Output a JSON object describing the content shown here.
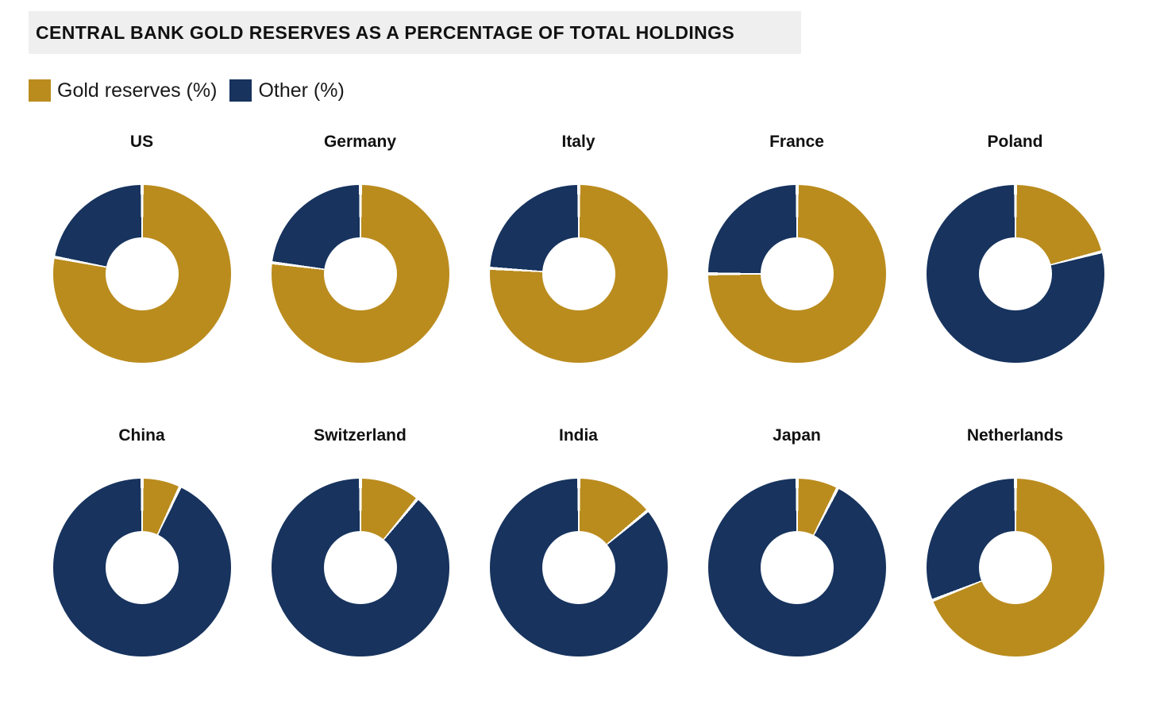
{
  "title": "CENTRAL BANK GOLD RESERVES AS A PERCENTAGE OF TOTAL HOLDINGS",
  "legend": [
    {
      "label": "Gold reserves (%)",
      "color": "#BA8C1E"
    },
    {
      "label": "Other (%)",
      "color": "#17335E"
    }
  ],
  "colors": {
    "gold": "#BA8C1E",
    "navy": "#17335E",
    "title_bg": "#EFEFEF",
    "text": "#1A1A1A",
    "separator": "#FFFFFF"
  },
  "chart_data": {
    "type": "pie",
    "variant": "donut",
    "title": "CENTRAL BANK GOLD RESERVES AS A PERCENTAGE OF TOTAL HOLDINGS",
    "legend_entries": [
      "Gold reserves (%)",
      "Other (%)"
    ],
    "layout": {
      "rows": 2,
      "cols": 5,
      "legend_position": "top-left",
      "start_angle_deg": 0,
      "direction": "clockwise",
      "inner_radius_pct": 41
    },
    "charts": [
      {
        "country": "US",
        "gold_pct": 78,
        "other_pct": 22
      },
      {
        "country": "Germany",
        "gold_pct": 77,
        "other_pct": 23
      },
      {
        "country": "Italy",
        "gold_pct": 76,
        "other_pct": 24
      },
      {
        "country": "France",
        "gold_pct": 75,
        "other_pct": 25
      },
      {
        "country": "Poland",
        "gold_pct": 21,
        "other_pct": 79
      },
      {
        "country": "China",
        "gold_pct": 7,
        "other_pct": 93
      },
      {
        "country": "Switzerland",
        "gold_pct": 11,
        "other_pct": 89
      },
      {
        "country": "India",
        "gold_pct": 14,
        "other_pct": 86
      },
      {
        "country": "Japan",
        "gold_pct": 7.5,
        "other_pct": 92.5
      },
      {
        "country": "Netherlands",
        "gold_pct": 69,
        "other_pct": 31
      }
    ]
  }
}
